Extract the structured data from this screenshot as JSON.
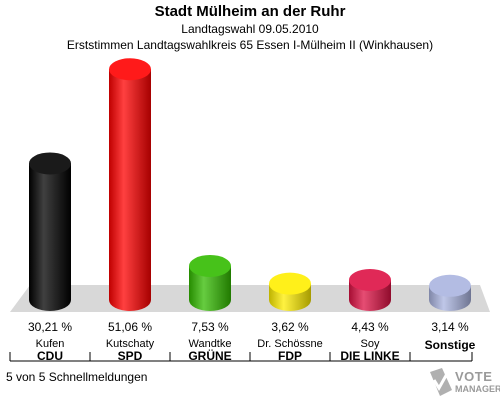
{
  "header": {
    "title": "Stadt Mülheim an der Ruhr",
    "subtitle": "Landtagswahl 09.05.2010",
    "subtitle2": "Erststimmen Landtagswahlkreis 65  Essen I-Mülheim II (Winkhausen)"
  },
  "chart_data": {
    "type": "bar",
    "categories": [
      "CDU",
      "SPD",
      "GRÜNE",
      "FDP",
      "DIE LINKE",
      "Sonstige"
    ],
    "candidates": [
      "Kufen",
      "Kutschaty",
      "Wandtke",
      "Dr. Schössne",
      "Soy",
      ""
    ],
    "values": [
      30.21,
      51.06,
      7.53,
      3.62,
      4.43,
      3.14
    ],
    "value_labels": [
      "30,21 %",
      "51,06 %",
      "7,53 %",
      "3,62 %",
      "4,43 %",
      "3,14 %"
    ],
    "colors": [
      "#000000",
      "#ff0000",
      "#33bb00",
      "#ffee00",
      "#dd1144",
      "#aab4e0"
    ]
  },
  "footer": {
    "text": "5 von 5 Schnellmeldungen"
  },
  "logo": {
    "line1": "VOTE",
    "line2": "MANAGER",
    "icon": "checkmark-ballot-icon"
  }
}
